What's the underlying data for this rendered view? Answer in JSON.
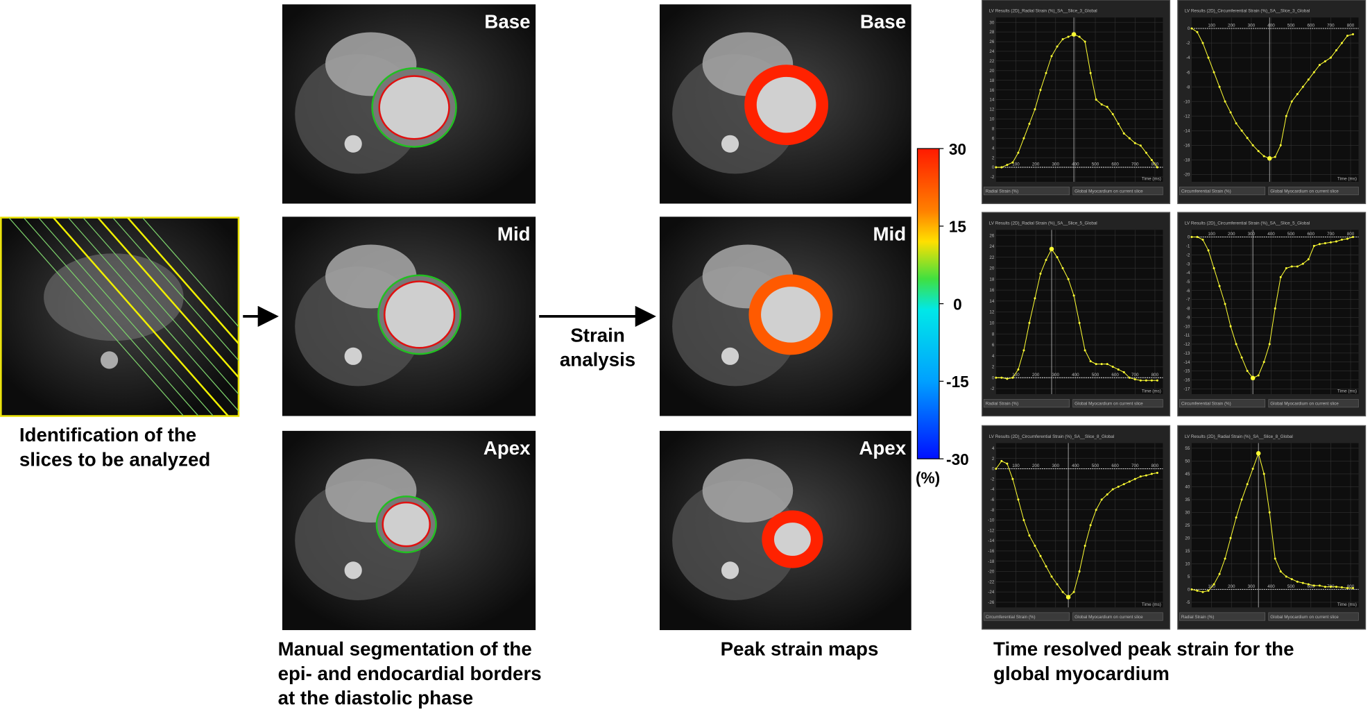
{
  "figure": {
    "captions": {
      "identification": [
        "Identification of the",
        "slices to be analyzed"
      ],
      "segmentation": [
        "Manual segmentation of the",
        "epi- and endocardial borders",
        "at the diastolic phase"
      ],
      "strain_maps": [
        "Peak strain maps"
      ],
      "time_resolved": [
        "Time resolved peak strain for the",
        "global myocardium"
      ]
    },
    "arrow_label": [
      "Strain",
      "analysis"
    ],
    "panel_labels": [
      "Base",
      "Mid",
      "Apex"
    ],
    "colorbar": {
      "lim": [
        -30,
        30
      ],
      "ticks": [
        30,
        15,
        0,
        -15,
        -30
      ],
      "unit": "(%)"
    }
  },
  "chart_data": [
    {
      "type": "line",
      "title": "LV Results (2D)_Radial Strain (%)_SA__Slice_3_Global",
      "xlabel": "Time (ms)",
      "region": "Global Myocardium on current slice",
      "x": [
        0,
        28,
        56,
        84,
        112,
        140,
        168,
        196,
        224,
        252,
        280,
        308,
        336,
        364,
        392,
        420,
        448,
        476,
        504,
        532,
        560,
        588,
        616,
        644,
        672,
        700,
        728,
        756,
        784,
        812
      ],
      "series": [
        {
          "name": "Radial Strain (%)",
          "color": "#ffff33",
          "values": [
            0,
            0,
            0.5,
            1,
            3,
            6,
            9,
            12,
            16,
            19.5,
            23,
            25,
            26.5,
            27,
            27.5,
            27,
            26,
            19.5,
            14,
            13,
            12.5,
            11,
            9,
            7,
            6,
            5,
            4.5,
            3,
            1.5,
            0
          ]
        }
      ],
      "xlim": [
        0,
        840
      ],
      "xticks": [
        100,
        200,
        300,
        400,
        500,
        600,
        700,
        800
      ],
      "ylim": [
        -3,
        31
      ],
      "yticks": [
        -2,
        0,
        2,
        4,
        6,
        8,
        10,
        12,
        14,
        16,
        18,
        20,
        22,
        24,
        26,
        28,
        30
      ],
      "grid": true
    },
    {
      "type": "line",
      "title": "LV Results (2D)_Circumferential Strain (%)_SA__Slice_3_Global",
      "xlabel": "Time (ms)",
      "region": "Global Myocardium on current slice",
      "x": [
        0,
        28,
        56,
        84,
        112,
        140,
        168,
        196,
        224,
        252,
        280,
        308,
        336,
        364,
        392,
        420,
        448,
        476,
        504,
        532,
        560,
        588,
        616,
        644,
        672,
        700,
        728,
        756,
        784,
        812
      ],
      "series": [
        {
          "name": "Circumferential Strain (%)",
          "color": "#ffff33",
          "values": [
            0,
            -0.5,
            -2,
            -4,
            -6,
            -8,
            -10,
            -11.5,
            -13,
            -14,
            -15,
            -16,
            -16.8,
            -17.5,
            -17.8,
            -17.6,
            -16,
            -12,
            -10,
            -9,
            -8,
            -7,
            -6,
            -5,
            -4.5,
            -4,
            -3,
            -2,
            -1,
            -0.8
          ]
        }
      ],
      "xlim": [
        0,
        840
      ],
      "xticks": [
        100,
        200,
        300,
        400,
        500,
        600,
        700,
        800
      ],
      "ylim": [
        -21,
        1.5
      ],
      "yticks": [
        0,
        -2,
        -4,
        -6,
        -8,
        -10,
        -12,
        -14,
        -16,
        -18,
        -20
      ],
      "grid": true
    },
    {
      "type": "line",
      "title": "LV Results (2D)_Radial Strain (%)_SA__Slice_5_Global",
      "xlabel": "Time (ms)",
      "region": "Global Myocardium on current slice",
      "x": [
        0,
        28,
        56,
        84,
        112,
        140,
        168,
        196,
        224,
        252,
        280,
        308,
        336,
        364,
        392,
        420,
        448,
        476,
        504,
        532,
        560,
        588,
        616,
        644,
        672,
        700,
        728,
        756,
        784,
        812
      ],
      "series": [
        {
          "name": "Radial Strain (%)",
          "color": "#ffff33",
          "values": [
            0,
            0,
            -0.2,
            0,
            1.5,
            5,
            10,
            14.5,
            19,
            21.5,
            23.5,
            22,
            20,
            18,
            15,
            10,
            5,
            3,
            2.5,
            2.5,
            2.5,
            2,
            1.5,
            1,
            0,
            -0.3,
            -0.5,
            -0.5,
            -0.5,
            -0.5
          ]
        }
      ],
      "xlim": [
        0,
        840
      ],
      "xticks": [
        100,
        200,
        300,
        400,
        500,
        600,
        700,
        800
      ],
      "ylim": [
        -3,
        27
      ],
      "yticks": [
        -2,
        0,
        2,
        4,
        6,
        8,
        10,
        12,
        14,
        16,
        18,
        20,
        22,
        24,
        26
      ],
      "grid": true
    },
    {
      "type": "line",
      "title": "LV Results (2D)_Circumferential Strain (%)_SA__Slice_5_Global",
      "xlabel": "Time (ms)",
      "region": "Global Myocardium on current slice",
      "x": [
        0,
        28,
        56,
        84,
        112,
        140,
        168,
        196,
        224,
        252,
        280,
        308,
        336,
        364,
        392,
        420,
        448,
        476,
        504,
        532,
        560,
        588,
        616,
        644,
        672,
        700,
        728,
        756,
        784,
        812
      ],
      "series": [
        {
          "name": "Circumferential Strain (%)",
          "color": "#ffff33",
          "values": [
            0,
            0,
            -0.3,
            -1.5,
            -3.5,
            -5.5,
            -7.5,
            -10,
            -12,
            -13.5,
            -15,
            -15.8,
            -15.5,
            -14,
            -12,
            -8,
            -4.5,
            -3.5,
            -3.3,
            -3.3,
            -3,
            -2.5,
            -1,
            -0.8,
            -0.7,
            -0.6,
            -0.5,
            -0.3,
            -0.2,
            0
          ]
        }
      ],
      "xlim": [
        0,
        840
      ],
      "xticks": [
        100,
        200,
        300,
        400,
        500,
        600,
        700,
        800
      ],
      "ylim": [
        -17.6,
        0.8
      ],
      "yticks": [
        0,
        -1,
        -2,
        -3,
        -4,
        -5,
        -6,
        -7,
        -8,
        -9,
        -10,
        -11,
        -12,
        -13,
        -14,
        -15,
        -16,
        -17
      ],
      "grid": true
    },
    {
      "type": "line",
      "title": "LV Results (2D)_Circumferential Strain (%)_SA__Slice_8_Global",
      "xlabel": "Time (ms)",
      "region": "Global Myocardium on current slice",
      "x": [
        0,
        28,
        56,
        84,
        112,
        140,
        168,
        196,
        224,
        252,
        280,
        308,
        336,
        364,
        392,
        420,
        448,
        476,
        504,
        532,
        560,
        588,
        616,
        644,
        672,
        700,
        728,
        756,
        784,
        812
      ],
      "series": [
        {
          "name": "Circumferential Strain (%)",
          "color": "#ffff33",
          "values": [
            0,
            1.5,
            1,
            -2,
            -6,
            -10,
            -13,
            -15,
            -17,
            -19,
            -21,
            -22.5,
            -24,
            -25,
            -24,
            -20,
            -15,
            -11,
            -8,
            -6,
            -5,
            -4,
            -3.5,
            -3,
            -2.5,
            -2,
            -1.5,
            -1.3,
            -1,
            -0.8
          ]
        }
      ],
      "xlim": [
        0,
        840
      ],
      "xticks": [
        100,
        200,
        300,
        400,
        500,
        600,
        700,
        800
      ],
      "ylim": [
        -27,
        5
      ],
      "yticks": [
        4,
        2,
        0,
        -2,
        -4,
        -6,
        -8,
        -10,
        -12,
        -14,
        -16,
        -18,
        -20,
        -22,
        -24,
        -26
      ],
      "grid": true
    },
    {
      "type": "line",
      "title": "LV Results (2D)_Radial Strain (%)_SA__Slice_8_Global",
      "xlabel": "Time (ms)",
      "region": "Global Myocardium on current slice",
      "x": [
        0,
        28,
        56,
        84,
        112,
        140,
        168,
        196,
        224,
        252,
        280,
        308,
        336,
        364,
        392,
        420,
        448,
        476,
        504,
        532,
        560,
        588,
        616,
        644,
        672,
        700,
        728,
        756,
        784,
        812
      ],
      "series": [
        {
          "name": "Radial Strain (%)",
          "color": "#ffff33",
          "values": [
            0,
            -0.5,
            -1,
            -0.5,
            2,
            6,
            12,
            20,
            28,
            35,
            41,
            47,
            53,
            45,
            30,
            12,
            7,
            5,
            4,
            3,
            2.5,
            2,
            1.5,
            1.5,
            1,
            1,
            1,
            0.8,
            0.5,
            0.5
          ]
        }
      ],
      "xlim": [
        0,
        840
      ],
      "xticks": [
        100,
        200,
        300,
        400,
        500,
        600,
        700,
        800
      ],
      "ylim": [
        -7,
        57
      ],
      "yticks": [
        -5,
        0,
        5,
        10,
        15,
        20,
        25,
        30,
        35,
        40,
        45,
        50,
        55
      ],
      "grid": true
    }
  ]
}
